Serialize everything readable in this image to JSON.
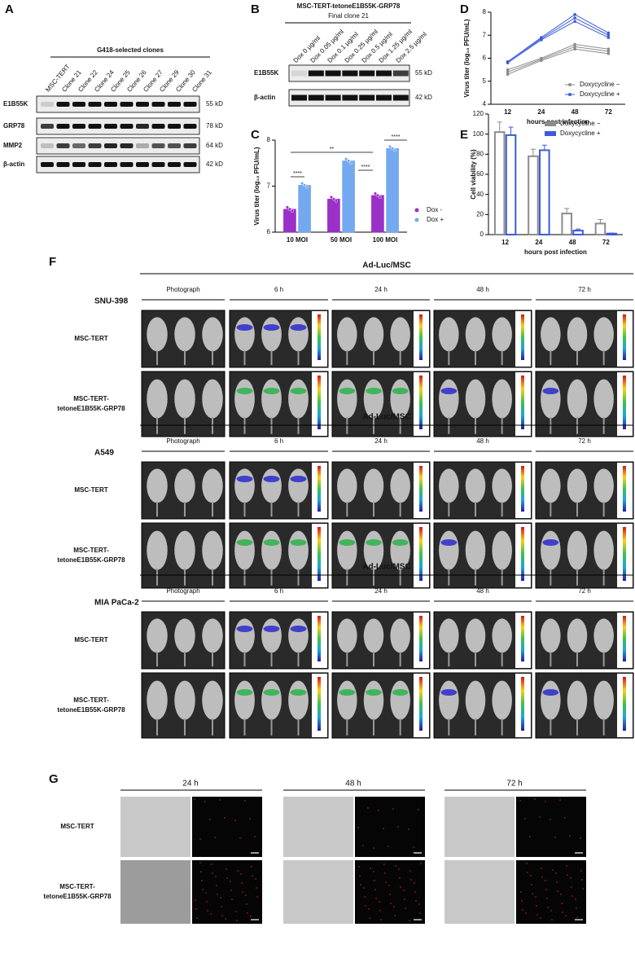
{
  "panel_labels": [
    "A",
    "B",
    "C",
    "D",
    "E",
    "F",
    "G"
  ],
  "panel_a": {
    "header": "G418-selected clones",
    "lanes": [
      "MSC-TERT",
      "Clone 21",
      "Clone 22",
      "Clone 24",
      "Clone 25",
      "Clone 26",
      "Clone 27",
      "Clone 29",
      "Clone 30",
      "Clone 31"
    ],
    "rows": [
      "E1B55K",
      "GRP78",
      "MMP2",
      "β-actin"
    ],
    "sizes": [
      "55 kD",
      "78 kD",
      "64 kD",
      "42 kD"
    ]
  },
  "panel_b": {
    "title": [
      "MSC-TERT-tetoneE1B55K-GRP78",
      "Final clone 21"
    ],
    "lanes": [
      "Dox 0 µg/ml",
      "Dox 0.05 µg/ml",
      "Dox 0.1 µg/ml",
      "Dox 0.25 µg/ml",
      "Dox 0.5 µg/ml",
      "Dox 1.25 µg/ml",
      "Dox 2.5 µg/ml"
    ],
    "rows": [
      "E1B55K",
      "β-actin"
    ],
    "sizes": [
      "55 kD",
      "42 kD"
    ]
  },
  "chart_data": [
    {
      "type": "bar",
      "ylabel": "Virus titer (log₁₀ PFU/mL)",
      "categories": [
        "10 MOI",
        "50 MOI",
        "100 MOI"
      ],
      "series": [
        {
          "name": "Dox -",
          "color": "#9b30c8",
          "values": [
            6.5,
            6.72,
            6.8
          ]
        },
        {
          "name": "Dox +",
          "color": "#74a9ef",
          "values": [
            7.02,
            7.55,
            7.82
          ]
        }
      ],
      "ylim": [
        6,
        8
      ],
      "yticks": [
        6,
        7,
        8
      ],
      "annotations": [
        "****",
        "**",
        "****",
        "****"
      ]
    },
    {
      "type": "line",
      "ylabel": "Virus titer (log₁₀ PFU/mL)",
      "xlabel": "hours post infection",
      "categories": [
        "12",
        "24",
        "48",
        "72"
      ],
      "series": [
        {
          "name": "Doxycycline −",
          "color": "#8c8c8c",
          "replicates": [
            [
              5.3,
              5.9,
              6.4,
              6.2
            ],
            [
              5.4,
              5.95,
              6.5,
              6.3
            ],
            [
              5.5,
              6.0,
              6.6,
              6.4
            ]
          ]
        },
        {
          "name": "Doxycycline +",
          "color": "#3d5bd9",
          "replicates": [
            [
              5.8,
              6.8,
              7.6,
              6.9
            ],
            [
              5.85,
              6.85,
              7.75,
              7.0
            ],
            [
              5.85,
              6.9,
              7.9,
              7.1
            ]
          ]
        }
      ],
      "ylim": [
        4,
        8
      ],
      "yticks": [
        4,
        5,
        6,
        7,
        8
      ]
    },
    {
      "type": "bar",
      "style": "outline",
      "ylabel": "Cell viability (%)",
      "xlabel": "hours post infection",
      "categories": [
        "12",
        "24",
        "48",
        "72"
      ],
      "series": [
        {
          "name": "Doxycycline −",
          "color": "#8c8c8c",
          "values": [
            102,
            78,
            21,
            11
          ],
          "errors": [
            10,
            7,
            5,
            4
          ]
        },
        {
          "name": "Doxycycline +",
          "color": "#3d5bd9",
          "values": [
            99,
            84,
            4,
            1
          ],
          "errors": [
            8,
            5,
            1.5,
            0.5
          ]
        }
      ],
      "ylim": [
        0,
        120
      ],
      "yticks": [
        0,
        20,
        40,
        60,
        80,
        100,
        120
      ]
    }
  ],
  "panel_f": {
    "header": "Ad-Luc/MSC",
    "cell_lines": [
      "SNU-398",
      "A549",
      "MIA PaCa-2"
    ],
    "columns": [
      "Photograph",
      "6 h",
      "24 h",
      "48 h",
      "72 h"
    ],
    "rows": [
      [
        "MSC-TERT"
      ],
      [
        "MSC-TERT-",
        "tetoneE1B55K-GRP78"
      ]
    ]
  },
  "panel_g": {
    "columns": [
      "24 h",
      "48 h",
      "72 h"
    ],
    "rows": [
      [
        "MSC-TERT"
      ],
      [
        "MSC-TERT-",
        "tetoneE1B55K-GRP78"
      ]
    ]
  }
}
